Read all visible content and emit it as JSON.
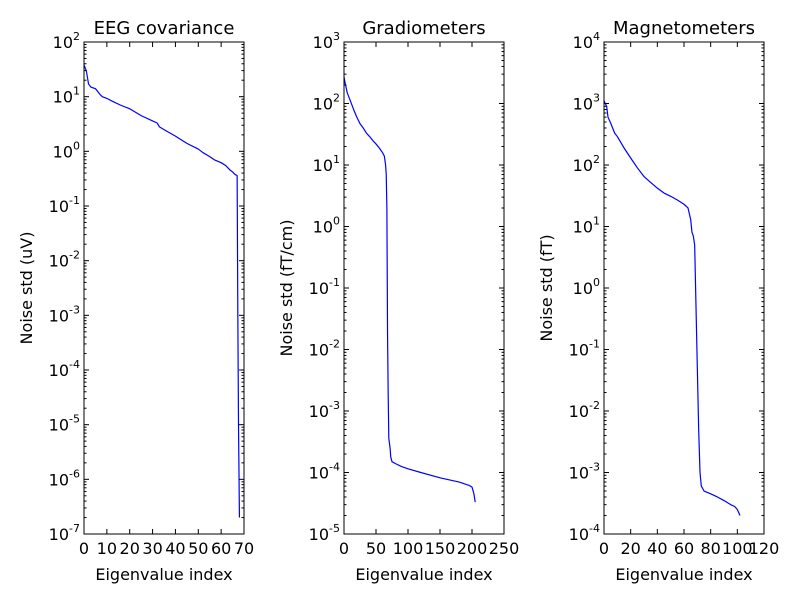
{
  "chart_data": [
    {
      "type": "line",
      "title": "EEG covariance",
      "xlabel": "Eigenvalue index",
      "ylabel": "Noise std (uV)",
      "yscale": "log",
      "xlim": [
        0,
        70
      ],
      "ylim": [
        1e-07,
        100
      ],
      "xticks": [
        0,
        10,
        20,
        30,
        40,
        50,
        60,
        70
      ],
      "yticks_exp": [
        -7,
        -6,
        -5,
        -4,
        -3,
        -2,
        -1,
        0,
        1,
        2
      ],
      "grid": false,
      "color": "#0000ff",
      "series": [
        {
          "x": [
            0,
            1,
            2,
            3,
            5,
            7,
            8,
            10,
            13,
            16,
            20,
            25,
            30,
            32,
            33,
            35,
            40,
            45,
            50,
            52,
            55,
            57,
            60,
            62,
            64,
            65,
            66,
            67,
            67.3,
            67.6,
            68
          ],
          "y": [
            38,
            30,
            17,
            15,
            14,
            11,
            10,
            9.3,
            8,
            7,
            6,
            4.5,
            3.6,
            3.3,
            2.8,
            2.5,
            1.9,
            1.4,
            1.1,
            0.95,
            0.8,
            0.7,
            0.62,
            0.55,
            0.45,
            0.42,
            0.38,
            0.36,
            0.001,
            1e-05,
            2e-07
          ]
        }
      ]
    },
    {
      "type": "line",
      "title": "Gradiometers",
      "xlabel": "Eigenvalue index",
      "ylabel": "Noise std (fT/cm)",
      "yscale": "log",
      "xlim": [
        0,
        250
      ],
      "ylim": [
        1e-05,
        1000
      ],
      "xticks": [
        0,
        50,
        100,
        150,
        200,
        250
      ],
      "yticks_exp": [
        -5,
        -4,
        -3,
        -2,
        -1,
        0,
        1,
        2,
        3
      ],
      "grid": false,
      "color": "#0000ff",
      "series": [
        {
          "x": [
            0,
            2,
            5,
            10,
            15,
            20,
            25,
            30,
            35,
            40,
            45,
            50,
            55,
            60,
            63,
            65,
            66,
            67,
            68,
            69,
            70,
            71,
            72,
            73,
            75,
            80,
            90,
            100,
            120,
            150,
            180,
            195,
            200,
            203,
            205
          ],
          "y": [
            270,
            210,
            150,
            110,
            80,
            60,
            47,
            40,
            33,
            29,
            25,
            22,
            19,
            16,
            14,
            10,
            7,
            2,
            0.02,
            0.002,
            0.00036,
            0.0003,
            0.00025,
            0.00018,
            0.00015,
            0.00014,
            0.000125,
            0.000115,
            0.0001,
            8.2e-05,
            7e-05,
            6.2e-05,
            5.8e-05,
            4.5e-05,
            3.3e-05
          ]
        }
      ]
    },
    {
      "type": "line",
      "title": "Magnetometers",
      "xlabel": "Eigenvalue index",
      "ylabel": "Noise std (fT)",
      "yscale": "log",
      "xlim": [
        0,
        120
      ],
      "ylim": [
        0.0001,
        10000
      ],
      "xticks": [
        0,
        20,
        40,
        60,
        80,
        100,
        120
      ],
      "yticks_exp": [
        -4,
        -3,
        -2,
        -1,
        0,
        1,
        2,
        3,
        4
      ],
      "grid": false,
      "color": "#0000ff",
      "series": [
        {
          "x": [
            0,
            1,
            2,
            3,
            5,
            8,
            10,
            15,
            20,
            25,
            30,
            35,
            40,
            45,
            50,
            55,
            60,
            63,
            65,
            66,
            67,
            68,
            69,
            70,
            71,
            72,
            73,
            74,
            75,
            80,
            85,
            90,
            95,
            98,
            100,
            102
          ],
          "y": [
            1100,
            1000,
            900,
            600,
            480,
            330,
            290,
            190,
            130,
            90,
            65,
            52,
            42,
            35,
            31,
            27,
            23,
            20,
            13,
            8,
            7,
            5,
            0.5,
            0.05,
            0.005,
            0.001,
            0.0006,
            0.00055,
            0.0005,
            0.00045,
            0.0004,
            0.00035,
            0.0003,
            0.00028,
            0.00025,
            0.0002
          ]
        }
      ]
    }
  ]
}
